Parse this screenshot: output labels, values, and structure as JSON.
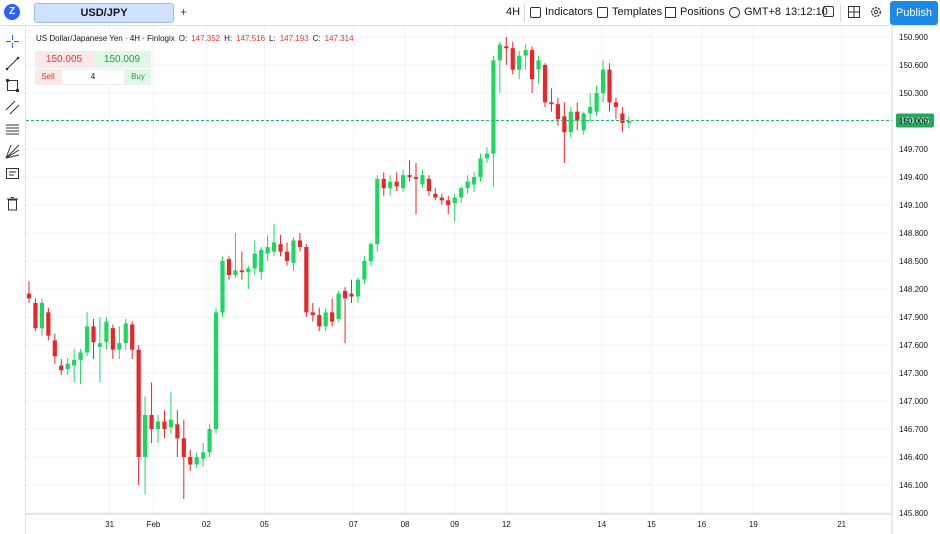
{
  "header": {
    "symbol": "USD/JPY",
    "add_tab": "+",
    "interval": "4H",
    "indicators": "Indicators",
    "templates": "Templates",
    "positions": "Positions",
    "timezone": "GMT+8",
    "clock": "13:12:10",
    "publish": "Publish"
  },
  "legend": {
    "name": "US Dollar/Japanese Yen · 4H · Finlogix",
    "o_label": "O:",
    "o_value": "147.352",
    "h_label": "H:",
    "h_value": "147.516",
    "l_label": "L:",
    "l_value": "147.193",
    "c_label": "C:",
    "c_value": "147.314"
  },
  "trade": {
    "sell_price": "150.005",
    "buy_price": "150.009",
    "sell_label": "Sell",
    "quantity": "4",
    "buy_label": "Buy"
  },
  "colors": {
    "up": "#1ed760",
    "down": "#e8262b",
    "price_line": "#2bb673",
    "price_tag_bg": "#26a65b"
  },
  "chart_data": {
    "type": "candlestick",
    "ylim": [
      145.75,
      151.0
    ],
    "y_ticks": [
      "150.900",
      "150.600",
      "150.300",
      "150.000",
      "149.700",
      "149.400",
      "149.100",
      "148.800",
      "148.500",
      "148.200",
      "147.900",
      "147.600",
      "147.300",
      "147.000",
      "146.700",
      "146.400",
      "146.100",
      "145.800"
    ],
    "x_ticks": [
      {
        "label": "31",
        "index": 12.5
      },
      {
        "label": "Feb",
        "index": 19.3
      },
      {
        "label": "02",
        "index": 27.5
      },
      {
        "label": "05",
        "index": 36.5
      },
      {
        "label": "07",
        "index": 50.3
      },
      {
        "label": "08",
        "index": 58.3
      },
      {
        "label": "09",
        "index": 66.0
      },
      {
        "label": "12",
        "index": 74.0
      },
      {
        "label": "14",
        "index": 88.8
      },
      {
        "label": "15",
        "index": 96.5
      },
      {
        "label": "16",
        "index": 104.3
      },
      {
        "label": "19",
        "index": 112.3
      },
      {
        "label": "21",
        "index": 126.0
      }
    ],
    "last_price": 150.005,
    "last_price_label": "150.005",
    "candles": [
      {
        "o": 148.15,
        "h": 148.28,
        "l": 148.05,
        "c": 148.1
      },
      {
        "o": 148.05,
        "h": 148.1,
        "l": 147.75,
        "c": 147.78
      },
      {
        "o": 147.78,
        "h": 148.1,
        "l": 147.7,
        "c": 148.05
      },
      {
        "o": 147.95,
        "h": 148.0,
        "l": 147.65,
        "c": 147.7
      },
      {
        "o": 147.65,
        "h": 147.72,
        "l": 147.4,
        "c": 147.48
      },
      {
        "o": 147.38,
        "h": 147.45,
        "l": 147.28,
        "c": 147.33
      },
      {
        "o": 147.34,
        "h": 147.46,
        "l": 147.28,
        "c": 147.4
      },
      {
        "o": 147.38,
        "h": 147.56,
        "l": 147.2,
        "c": 147.44
      },
      {
        "o": 147.44,
        "h": 147.56,
        "l": 147.18,
        "c": 147.52
      },
      {
        "o": 147.52,
        "h": 147.95,
        "l": 147.48,
        "c": 147.8
      },
      {
        "o": 147.8,
        "h": 147.88,
        "l": 147.45,
        "c": 147.63
      },
      {
        "o": 147.58,
        "h": 147.9,
        "l": 147.2,
        "c": 147.62
      },
      {
        "o": 147.63,
        "h": 147.9,
        "l": 147.55,
        "c": 147.85
      },
      {
        "o": 147.78,
        "h": 147.82,
        "l": 147.45,
        "c": 147.55
      },
      {
        "o": 147.55,
        "h": 147.8,
        "l": 147.45,
        "c": 147.62
      },
      {
        "o": 147.62,
        "h": 147.88,
        "l": 147.55,
        "c": 147.83
      },
      {
        "o": 147.82,
        "h": 147.85,
        "l": 147.45,
        "c": 147.55
      },
      {
        "o": 147.55,
        "h": 147.6,
        "l": 146.1,
        "c": 146.4
      },
      {
        "o": 146.4,
        "h": 147.05,
        "l": 146.0,
        "c": 146.85
      },
      {
        "o": 146.85,
        "h": 147.2,
        "l": 146.55,
        "c": 146.7
      },
      {
        "o": 146.7,
        "h": 146.85,
        "l": 146.55,
        "c": 146.78
      },
      {
        "o": 146.78,
        "h": 146.9,
        "l": 146.6,
        "c": 146.7
      },
      {
        "o": 146.72,
        "h": 147.1,
        "l": 146.65,
        "c": 146.8
      },
      {
        "o": 146.75,
        "h": 146.9,
        "l": 146.4,
        "c": 146.6
      },
      {
        "o": 146.6,
        "h": 146.8,
        "l": 145.95,
        "c": 146.4
      },
      {
        "o": 146.4,
        "h": 146.48,
        "l": 146.25,
        "c": 146.32
      },
      {
        "o": 146.32,
        "h": 146.45,
        "l": 146.28,
        "c": 146.4
      },
      {
        "o": 146.38,
        "h": 146.55,
        "l": 146.3,
        "c": 146.45
      },
      {
        "o": 146.45,
        "h": 146.75,
        "l": 146.4,
        "c": 146.7
      },
      {
        "o": 146.7,
        "h": 148.0,
        "l": 146.65,
        "c": 147.95
      },
      {
        "o": 147.95,
        "h": 148.55,
        "l": 147.9,
        "c": 148.5
      },
      {
        "o": 148.52,
        "h": 148.55,
        "l": 148.3,
        "c": 148.35
      },
      {
        "o": 148.35,
        "h": 148.8,
        "l": 148.32,
        "c": 148.4
      },
      {
        "o": 148.4,
        "h": 148.6,
        "l": 148.3,
        "c": 148.38
      },
      {
        "o": 148.38,
        "h": 148.45,
        "l": 148.2,
        "c": 148.42
      },
      {
        "o": 148.42,
        "h": 148.72,
        "l": 148.35,
        "c": 148.58
      },
      {
        "o": 148.38,
        "h": 148.65,
        "l": 148.3,
        "c": 148.62
      },
      {
        "o": 148.58,
        "h": 148.78,
        "l": 148.5,
        "c": 148.65
      },
      {
        "o": 148.6,
        "h": 148.9,
        "l": 148.55,
        "c": 148.7
      },
      {
        "o": 148.68,
        "h": 148.78,
        "l": 148.55,
        "c": 148.6
      },
      {
        "o": 148.6,
        "h": 148.7,
        "l": 148.45,
        "c": 148.5
      },
      {
        "o": 148.48,
        "h": 148.75,
        "l": 148.4,
        "c": 148.72
      },
      {
        "o": 148.72,
        "h": 148.8,
        "l": 148.6,
        "c": 148.65
      },
      {
        "o": 148.65,
        "h": 148.68,
        "l": 147.9,
        "c": 147.95
      },
      {
        "o": 147.95,
        "h": 148.05,
        "l": 147.85,
        "c": 147.92
      },
      {
        "o": 147.92,
        "h": 148.0,
        "l": 147.75,
        "c": 147.8
      },
      {
        "o": 147.8,
        "h": 148.0,
        "l": 147.75,
        "c": 147.95
      },
      {
        "o": 147.95,
        "h": 148.1,
        "l": 147.8,
        "c": 147.85
      },
      {
        "o": 147.88,
        "h": 148.18,
        "l": 147.85,
        "c": 148.15
      },
      {
        "o": 148.18,
        "h": 148.22,
        "l": 147.62,
        "c": 148.1
      },
      {
        "o": 148.15,
        "h": 148.3,
        "l": 148.05,
        "c": 148.12
      },
      {
        "o": 148.12,
        "h": 148.32,
        "l": 148.05,
        "c": 148.3
      },
      {
        "o": 148.3,
        "h": 148.55,
        "l": 148.25,
        "c": 148.5
      },
      {
        "o": 148.5,
        "h": 148.7,
        "l": 148.45,
        "c": 148.68
      },
      {
        "o": 148.68,
        "h": 149.42,
        "l": 148.6,
        "c": 149.38
      },
      {
        "o": 149.38,
        "h": 149.45,
        "l": 149.2,
        "c": 149.28
      },
      {
        "o": 149.28,
        "h": 149.42,
        "l": 149.2,
        "c": 149.35
      },
      {
        "o": 149.35,
        "h": 149.45,
        "l": 149.25,
        "c": 149.3
      },
      {
        "o": 149.28,
        "h": 149.48,
        "l": 149.24,
        "c": 149.42
      },
      {
        "o": 149.42,
        "h": 149.58,
        "l": 149.35,
        "c": 149.4
      },
      {
        "o": 149.4,
        "h": 149.55,
        "l": 149.0,
        "c": 149.38
      },
      {
        "o": 149.32,
        "h": 149.48,
        "l": 149.28,
        "c": 149.42
      },
      {
        "o": 149.38,
        "h": 149.42,
        "l": 149.2,
        "c": 149.25
      },
      {
        "o": 149.22,
        "h": 149.28,
        "l": 149.15,
        "c": 149.18
      },
      {
        "o": 149.18,
        "h": 149.22,
        "l": 149.1,
        "c": 149.15
      },
      {
        "o": 149.15,
        "h": 149.2,
        "l": 149.0,
        "c": 149.1
      },
      {
        "o": 149.12,
        "h": 149.22,
        "l": 148.92,
        "c": 149.18
      },
      {
        "o": 149.18,
        "h": 149.3,
        "l": 149.12,
        "c": 149.28
      },
      {
        "o": 149.28,
        "h": 149.42,
        "l": 149.22,
        "c": 149.35
      },
      {
        "o": 149.32,
        "h": 149.45,
        "l": 149.24,
        "c": 149.4
      },
      {
        "o": 149.4,
        "h": 149.65,
        "l": 149.35,
        "c": 149.6
      },
      {
        "o": 149.6,
        "h": 149.72,
        "l": 149.55,
        "c": 149.65
      },
      {
        "o": 149.65,
        "h": 150.7,
        "l": 149.3,
        "c": 150.65
      },
      {
        "o": 150.65,
        "h": 150.85,
        "l": 150.3,
        "c": 150.82
      },
      {
        "o": 150.8,
        "h": 150.9,
        "l": 150.6,
        "c": 150.78
      },
      {
        "o": 150.78,
        "h": 150.85,
        "l": 150.5,
        "c": 150.55
      },
      {
        "o": 150.55,
        "h": 150.75,
        "l": 150.45,
        "c": 150.7
      },
      {
        "o": 150.7,
        "h": 150.82,
        "l": 150.55,
        "c": 150.76
      },
      {
        "o": 150.76,
        "h": 150.8,
        "l": 150.3,
        "c": 150.45
      },
      {
        "o": 150.55,
        "h": 150.7,
        "l": 150.4,
        "c": 150.65
      },
      {
        "o": 150.6,
        "h": 150.62,
        "l": 150.15,
        "c": 150.2
      },
      {
        "o": 150.2,
        "h": 150.35,
        "l": 150.1,
        "c": 150.18
      },
      {
        "o": 150.18,
        "h": 150.25,
        "l": 149.95,
        "c": 150.02
      },
      {
        "o": 150.05,
        "h": 150.2,
        "l": 149.55,
        "c": 149.88
      },
      {
        "o": 149.88,
        "h": 150.15,
        "l": 149.82,
        "c": 150.1
      },
      {
        "o": 150.1,
        "h": 150.2,
        "l": 149.9,
        "c": 150.0
      },
      {
        "o": 149.9,
        "h": 150.1,
        "l": 149.85,
        "c": 150.08
      },
      {
        "o": 150.08,
        "h": 150.3,
        "l": 150.0,
        "c": 150.15
      },
      {
        "o": 150.1,
        "h": 150.38,
        "l": 150.05,
        "c": 150.3
      },
      {
        "o": 150.3,
        "h": 150.65,
        "l": 150.2,
        "c": 150.55
      },
      {
        "o": 150.55,
        "h": 150.62,
        "l": 150.1,
        "c": 150.2
      },
      {
        "o": 150.2,
        "h": 150.25,
        "l": 150.02,
        "c": 150.15
      },
      {
        "o": 150.08,
        "h": 150.15,
        "l": 149.88,
        "c": 149.98
      },
      {
        "o": 149.98,
        "h": 150.05,
        "l": 149.92,
        "c": 150.0
      }
    ]
  }
}
